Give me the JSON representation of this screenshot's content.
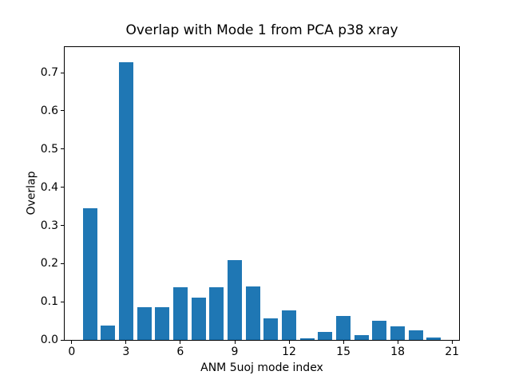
{
  "chart_data": {
    "type": "bar",
    "title": "Overlap with Mode 1 from PCA p38 xray",
    "xlabel": "ANM 5uoj mode index",
    "ylabel": "Overlap",
    "categories": [
      1,
      2,
      3,
      4,
      5,
      6,
      7,
      8,
      9,
      10,
      11,
      12,
      13,
      14,
      15,
      16,
      17,
      18,
      19,
      20
    ],
    "values": [
      0.344,
      0.037,
      0.727,
      0.085,
      0.085,
      0.139,
      0.11,
      0.138,
      0.209,
      0.14,
      0.056,
      0.077,
      0.004,
      0.02,
      0.062,
      0.012,
      0.05,
      0.036,
      0.026,
      0.006
    ],
    "bar_width": 0.8,
    "bar_color": "#1f77b4",
    "text_color": "#000000",
    "background_color": "#ffffff",
    "xlim": [
      -0.39,
      21.39
    ],
    "ylim": [
      0,
      0.767
    ],
    "xticks": [
      0,
      3,
      6,
      9,
      12,
      15,
      18,
      21
    ],
    "xtick_labels": [
      "0",
      "3",
      "6",
      "9",
      "12",
      "15",
      "18",
      "21"
    ],
    "yticks": [
      0.0,
      0.1,
      0.2,
      0.3,
      0.4,
      0.5,
      0.6,
      0.7
    ],
    "ytick_labels": [
      "0.0",
      "0.1",
      "0.2",
      "0.3",
      "0.4",
      "0.5",
      "0.6",
      "0.7"
    ],
    "grid": false,
    "legend": null
  }
}
